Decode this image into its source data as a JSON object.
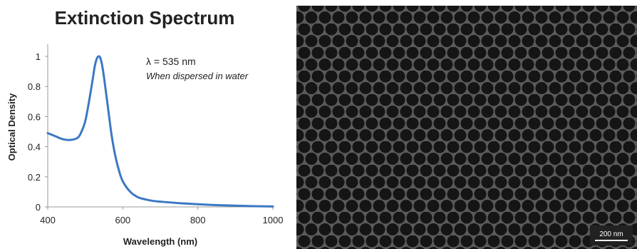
{
  "chart_data": {
    "type": "line",
    "title": "Extinction Spectrum",
    "xlabel": "Wavelength (nm)",
    "ylabel": "Optical Density",
    "xlim": [
      400,
      1000
    ],
    "ylim": [
      0,
      1.1
    ],
    "x_ticks": [
      "400",
      "600",
      "800",
      "1000"
    ],
    "y_ticks": [
      "0",
      "0.2",
      "0.4",
      "0.6",
      "0.8",
      "1"
    ],
    "grid": false,
    "series": [
      {
        "color": "#3b78c4",
        "x": [
          400,
          420,
          440,
          460,
          480,
          490,
          500,
          510,
          520,
          525,
          530,
          535,
          540,
          545,
          550,
          560,
          570,
          580,
          590,
          600,
          620,
          640,
          660,
          680,
          700,
          750,
          800,
          850,
          900,
          950,
          1000
        ],
        "y": [
          0.49,
          0.47,
          0.45,
          0.445,
          0.46,
          0.5,
          0.57,
          0.7,
          0.85,
          0.93,
          0.98,
          1.0,
          0.99,
          0.94,
          0.86,
          0.67,
          0.48,
          0.34,
          0.24,
          0.17,
          0.1,
          0.065,
          0.05,
          0.04,
          0.035,
          0.025,
          0.018,
          0.012,
          0.008,
          0.005,
          0.003
        ]
      }
    ],
    "annotations": [
      "λ = 535 nm",
      "When dispersed in water"
    ]
  },
  "micrograph": {
    "scale_bar_label": "200 nm"
  }
}
